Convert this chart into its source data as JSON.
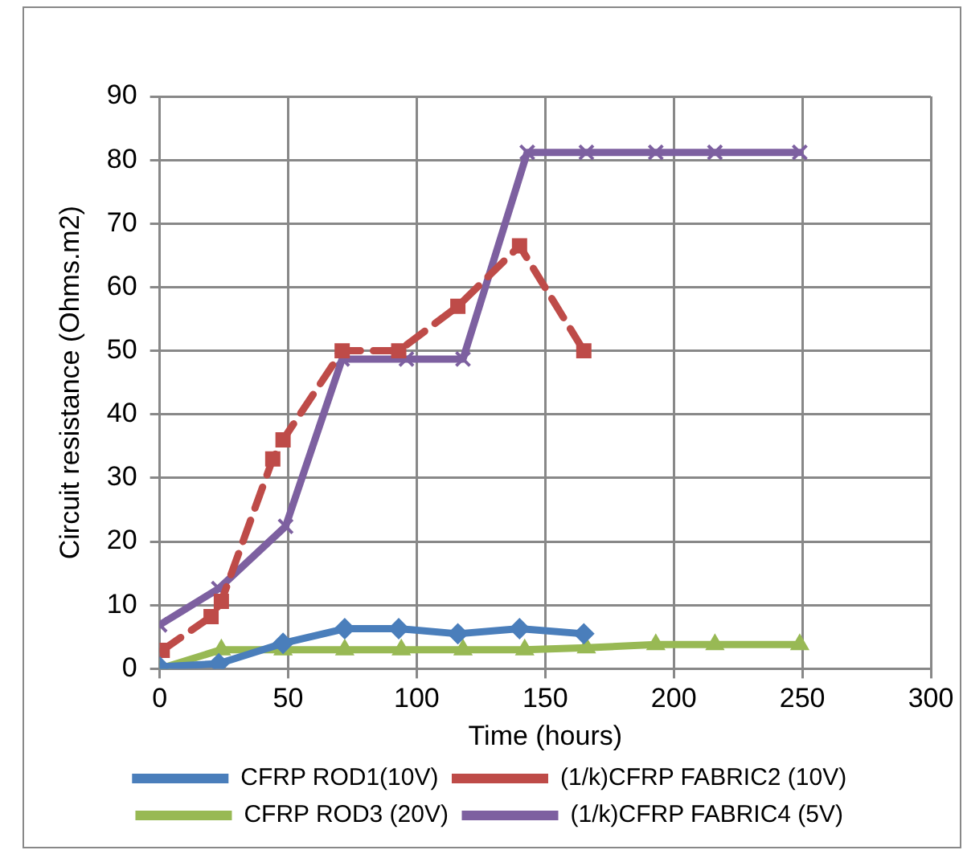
{
  "chart_data": {
    "type": "line",
    "xlabel": "Time (hours)",
    "ylabel": "Circuit resistance (Ohms.m2)",
    "xlim": [
      0,
      300
    ],
    "xticks": [
      0,
      50,
      100,
      150,
      200,
      250,
      300
    ],
    "ylim": [
      0,
      90
    ],
    "yticks": [
      0,
      10,
      20,
      30,
      40,
      50,
      60,
      70,
      80,
      90
    ],
    "grid": true,
    "legend": "bottom",
    "series": [
      {
        "name": "CFRP ROD1(10V)",
        "color": "#4a7ebb",
        "marker": "diamond",
        "line_style": "solid",
        "x": [
          0,
          23,
          48,
          72,
          93,
          116,
          140,
          165
        ],
        "values": [
          0.3,
          0.8,
          4,
          6.3,
          6.3,
          5.5,
          6.3,
          5.5
        ]
      },
      {
        "name": "(1/k)CFRP FABRIC2 (10V)",
        "color": "#be4b48",
        "marker": "square",
        "line_style": "dashed",
        "x": [
          1,
          20,
          24,
          44,
          48,
          71,
          93,
          116,
          140,
          165
        ],
        "values": [
          2.9,
          8.2,
          10.6,
          33,
          36,
          50,
          50,
          57,
          66.5,
          50
        ]
      },
      {
        "name": "CFRP ROD3 (20V)",
        "color": "#98b954",
        "marker": "triangle",
        "line_style": "solid",
        "x": [
          0,
          24,
          48,
          72,
          94,
          118,
          142,
          166,
          193,
          216,
          249
        ],
        "values": [
          0,
          3,
          3,
          3,
          3,
          3,
          3,
          3.3,
          3.8,
          3.8,
          3.8
        ]
      },
      {
        "name": "(1/k)CFRP FABRIC4 (5V)",
        "color": "#7d60a0",
        "marker": "cross",
        "line_style": "solid",
        "x": [
          0,
          23,
          49,
          71,
          96,
          118,
          143,
          166,
          193,
          216,
          249
        ],
        "values": [
          6.9,
          12.6,
          22.4,
          48.7,
          48.7,
          48.7,
          81.2,
          81.2,
          81.2,
          81.2,
          81.2
        ]
      }
    ]
  }
}
